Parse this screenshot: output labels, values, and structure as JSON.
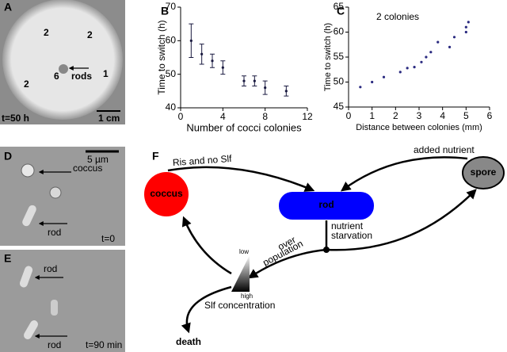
{
  "chart_data": [
    {
      "type": "errorbar",
      "panel": "B",
      "xlabel": "Number of cocci colonies",
      "ylabel": "Time to switch (h)",
      "color": "#1a1a40",
      "series": [
        {
          "x": [
            1,
            2,
            3,
            4,
            6,
            7,
            8,
            10
          ],
          "values": [
            60,
            56,
            54,
            52,
            48,
            48,
            46,
            45
          ],
          "errors": [
            5,
            3,
            2,
            2,
            1.5,
            1.5,
            2,
            1.5
          ]
        }
      ],
      "xlim": [
        0,
        12
      ],
      "xticks": [
        0,
        4,
        8,
        12
      ],
      "ylim": [
        40,
        70
      ],
      "yticks": [
        40,
        50,
        60,
        70
      ]
    },
    {
      "type": "scatter",
      "panel": "C",
      "annotation": "2 colonies",
      "xlabel": "Distance between colonies (mm)",
      "ylabel": "Time to switch (h)",
      "color": "#2a2a80",
      "series": [
        {
          "x": [
            0.5,
            1,
            1.5,
            2.2,
            2.5,
            2.8,
            3.1,
            3.3,
            3.5,
            3.8,
            4.3,
            4.5,
            5,
            5,
            5.1
          ],
          "values": [
            49,
            50,
            51,
            52,
            52.8,
            53,
            54,
            55,
            56,
            58,
            57,
            59,
            60,
            61,
            62
          ]
        }
      ],
      "xlim": [
        0,
        6
      ],
      "xticks": [
        0,
        1,
        2,
        3,
        4,
        5,
        6
      ],
      "ylim": [
        45,
        65
      ],
      "yticks": [
        45,
        50,
        55,
        60,
        65
      ]
    }
  ],
  "photos": {
    "a": {
      "panel": "A",
      "labels": [
        "2",
        "2",
        "2",
        "6",
        "rods",
        "1"
      ],
      "time": "t=50 h",
      "scale": "1 cm"
    },
    "d": {
      "panel": "D",
      "scale": "5 µm",
      "labels": [
        "coccus",
        "rod"
      ],
      "time": "t=0"
    },
    "e": {
      "panel": "E",
      "labels": [
        "rod",
        "rod"
      ],
      "time": "t=90 min"
    }
  },
  "diagram": {
    "panel": "F",
    "nodes": [
      "coccus",
      "rod",
      "spore",
      "death"
    ],
    "edges": [
      "Ris and no Slf",
      "added  nutrient",
      "nutrient",
      "starvation",
      "over",
      "population"
    ],
    "gradient": {
      "low": "low",
      "high": "high",
      "label": "Slf concentration"
    }
  }
}
